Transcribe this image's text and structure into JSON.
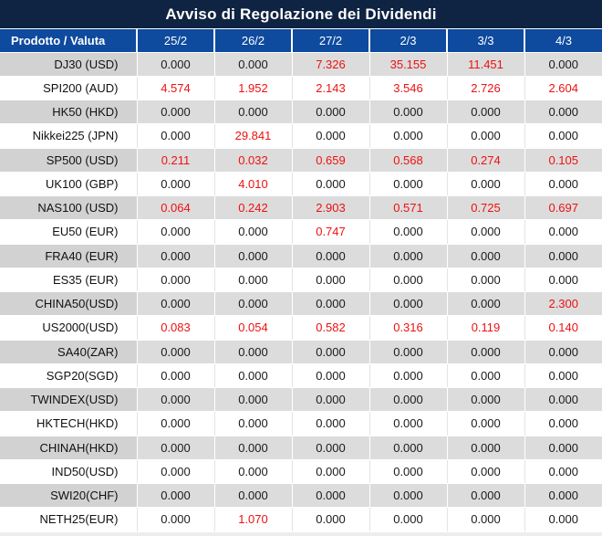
{
  "title": "Avviso di Regolazione dei Dividendi",
  "table": {
    "header": {
      "product_label": "Prodotto / Valuta",
      "dates": [
        "25/2",
        "26/2",
        "27/2",
        "2/3",
        "3/3",
        "4/3"
      ]
    },
    "rows": [
      {
        "product": "DJ30 (USD)",
        "values": [
          "0.000",
          "0.000",
          "7.326",
          "35.155",
          "11.451",
          "0.000"
        ]
      },
      {
        "product": "SPI200 (AUD)",
        "values": [
          "4.574",
          "1.952",
          "2.143",
          "3.546",
          "2.726",
          "2.604"
        ]
      },
      {
        "product": "HK50 (HKD)",
        "values": [
          "0.000",
          "0.000",
          "0.000",
          "0.000",
          "0.000",
          "0.000"
        ]
      },
      {
        "product": "Nikkei225 (JPN)",
        "values": [
          "0.000",
          "29.841",
          "0.000",
          "0.000",
          "0.000",
          "0.000"
        ]
      },
      {
        "product": "SP500 (USD)",
        "values": [
          "0.211",
          "0.032",
          "0.659",
          "0.568",
          "0.274",
          "0.105"
        ]
      },
      {
        "product": "UK100 (GBP)",
        "values": [
          "0.000",
          "4.010",
          "0.000",
          "0.000",
          "0.000",
          "0.000"
        ]
      },
      {
        "product": "NAS100 (USD)",
        "values": [
          "0.064",
          "0.242",
          "2.903",
          "0.571",
          "0.725",
          "0.697"
        ]
      },
      {
        "product": "EU50 (EUR)",
        "values": [
          "0.000",
          "0.000",
          "0.747",
          "0.000",
          "0.000",
          "0.000"
        ]
      },
      {
        "product": "FRA40 (EUR)",
        "values": [
          "0.000",
          "0.000",
          "0.000",
          "0.000",
          "0.000",
          "0.000"
        ]
      },
      {
        "product": "ES35 (EUR)",
        "values": [
          "0.000",
          "0.000",
          "0.000",
          "0.000",
          "0.000",
          "0.000"
        ]
      },
      {
        "product": "CHINA50(USD)",
        "values": [
          "0.000",
          "0.000",
          "0.000",
          "0.000",
          "0.000",
          "2.300"
        ]
      },
      {
        "product": "US2000(USD)",
        "values": [
          "0.083",
          "0.054",
          "0.582",
          "0.316",
          "0.119",
          "0.140"
        ]
      },
      {
        "product": "SA40(ZAR)",
        "values": [
          "0.000",
          "0.000",
          "0.000",
          "0.000",
          "0.000",
          "0.000"
        ]
      },
      {
        "product": "SGP20(SGD)",
        "values": [
          "0.000",
          "0.000",
          "0.000",
          "0.000",
          "0.000",
          "0.000"
        ]
      },
      {
        "product": "TWINDEX(USD)",
        "values": [
          "0.000",
          "0.000",
          "0.000",
          "0.000",
          "0.000",
          "0.000"
        ]
      },
      {
        "product": "HKTECH(HKD)",
        "values": [
          "0.000",
          "0.000",
          "0.000",
          "0.000",
          "0.000",
          "0.000"
        ]
      },
      {
        "product": "CHINAH(HKD)",
        "values": [
          "0.000",
          "0.000",
          "0.000",
          "0.000",
          "0.000",
          "0.000"
        ]
      },
      {
        "product": "IND50(USD)",
        "values": [
          "0.000",
          "0.000",
          "0.000",
          "0.000",
          "0.000",
          "0.000"
        ]
      },
      {
        "product": "SWI20(CHF)",
        "values": [
          "0.000",
          "0.000",
          "0.000",
          "0.000",
          "0.000",
          "0.000"
        ]
      },
      {
        "product": "NETH25(EUR)",
        "values": [
          "0.000",
          "1.070",
          "0.000",
          "0.000",
          "0.000",
          "0.000"
        ]
      }
    ]
  },
  "colors": {
    "title_bg": "#0f2342",
    "header_bg": "#0e4a9e",
    "alt_row_bg": "#dcdcdc",
    "alt_row_product_bg": "#d2d2d2",
    "zero_value_text": "#1a1a1a",
    "nonzero_value_text": "#ee1111"
  }
}
